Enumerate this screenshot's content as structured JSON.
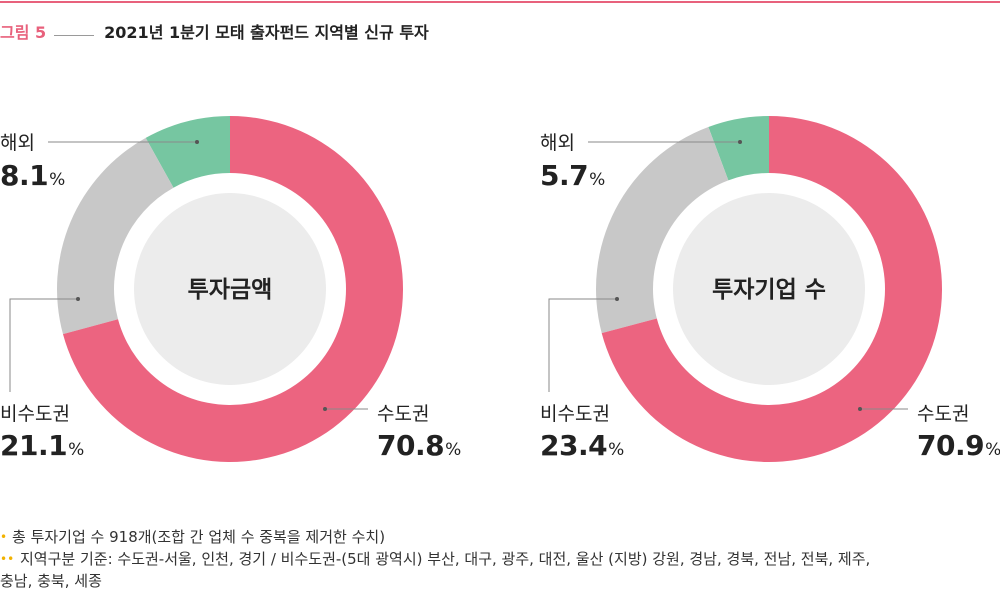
{
  "figure": {
    "label": "그림 5",
    "title": "2021년 1분기 모태 출자펀드 지역별 신규 투자"
  },
  "colors": {
    "accent": "#e8617c",
    "capital": "#ec6480",
    "noncapital": "#c8c8c8",
    "overseas": "#76c6a1",
    "center": "#ececec",
    "bullet": "#f2b200"
  },
  "chart_data": [
    {
      "type": "pie",
      "title": "투자금액",
      "slices": [
        {
          "label": "수도권",
          "value": 70.8,
          "unit": "%"
        },
        {
          "label": "비수도권",
          "value": 21.1,
          "unit": "%"
        },
        {
          "label": "해외",
          "value": 8.1,
          "unit": "%"
        }
      ]
    },
    {
      "type": "pie",
      "title": "투자기업 수",
      "slices": [
        {
          "label": "수도권",
          "value": 70.9,
          "unit": "%"
        },
        {
          "label": "비수도권",
          "value": 23.4,
          "unit": "%"
        },
        {
          "label": "해외",
          "value": 5.7,
          "unit": "%"
        }
      ]
    }
  ],
  "notes": [
    {
      "marker": "•",
      "text": "총 투자기업 수 918개(조합 간 업체 수 중복을 제거한 수치)"
    },
    {
      "marker": "••",
      "text": "지역구분 기준: 수도권-서울, 인천, 경기 / 비수도권-(5대 광역시) 부산, 대구, 광주, 대전, 울산 (지방) 강원, 경남, 경북, 전남, 전북, 제주,",
      "text2": "충남, 충북, 세종"
    }
  ]
}
